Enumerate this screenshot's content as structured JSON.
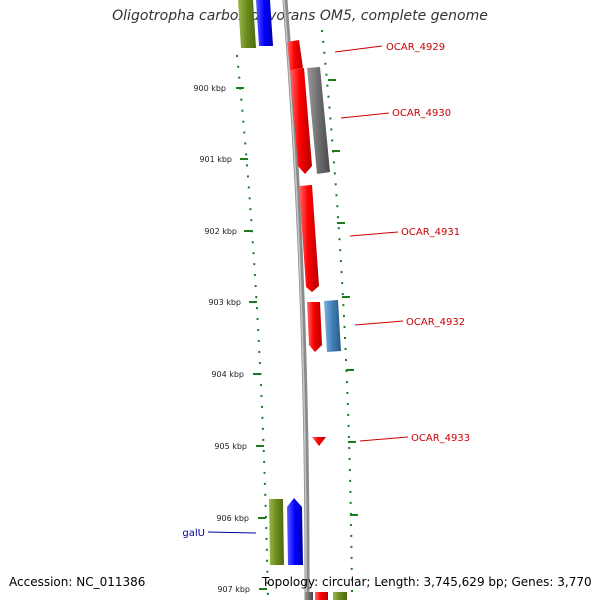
{
  "title": "Oligotropha carboxidovorans OM5, complete genome",
  "footer": {
    "accession": "Accession: NC_011386",
    "summary": "Topology: circular; Length: 3,745,629 bp; Genes: 3,770"
  },
  "colors": {
    "forward_gene": "#ff0000",
    "reverse_gene_gray": "#6e6e6e",
    "steelblue_gene": "#3f7fb5",
    "olive_gene": "#6b8a1d",
    "blue_gene": "#0000ff",
    "tick": "#1d7a1d",
    "label_red": "#cc0000",
    "label_blue": "#000099"
  },
  "ticks": [
    "900 kbp",
    "901 kbp",
    "902 kbp",
    "903 kbp",
    "904 kbp",
    "905 kbp",
    "906 kbp",
    "907 kbp"
  ],
  "gene_labels": [
    {
      "name": "OCAR_4929",
      "color": "red"
    },
    {
      "name": "OCAR_4930",
      "color": "red"
    },
    {
      "name": "OCAR_4931",
      "color": "red"
    },
    {
      "name": "OCAR_4932",
      "color": "red"
    },
    {
      "name": "OCAR_4933",
      "color": "red"
    },
    {
      "name": "galU",
      "color": "blue"
    }
  ]
}
